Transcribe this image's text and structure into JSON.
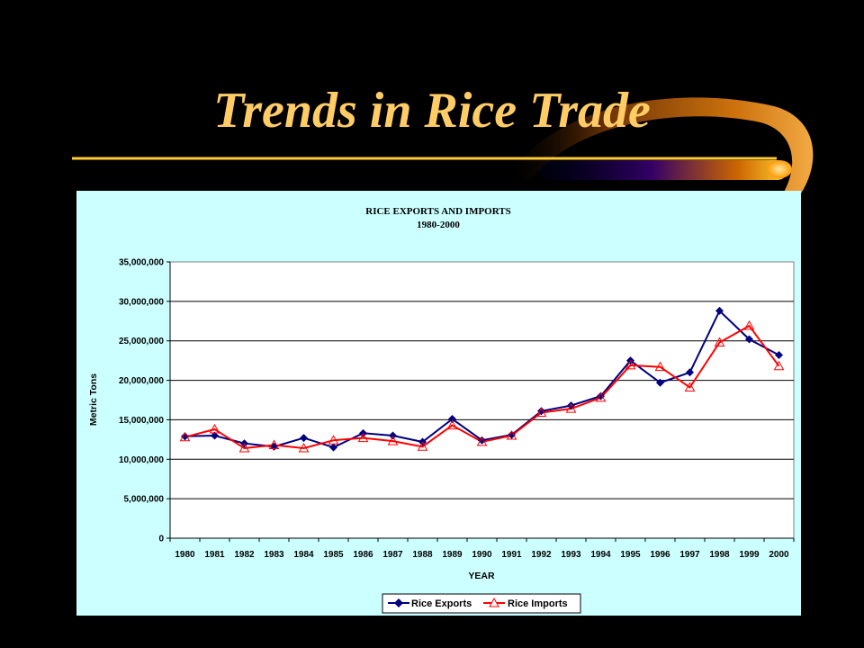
{
  "slide": {
    "title": "Trends in Rice Trade"
  },
  "colors": {
    "background": "#000000",
    "title": "#ffcc66",
    "panel": "#ccffff",
    "exports": "#000080",
    "imports": "#ff0000"
  },
  "chart_data": {
    "type": "line",
    "title": "RICE EXPORTS AND IMPORTS",
    "subtitle": "1980-2000",
    "xlabel": "YEAR",
    "ylabel": "Metric Tons",
    "ylim": [
      0,
      35000000
    ],
    "yticks": [
      "0",
      "5,000,000",
      "10,000,000",
      "15,000,000",
      "20,000,000",
      "25,000,000",
      "30,000,000",
      "35,000,000"
    ],
    "grid": true,
    "legend_position": "bottom",
    "categories": [
      "1980",
      "1981",
      "1982",
      "1983",
      "1984",
      "1985",
      "1986",
      "1987",
      "1988",
      "1989",
      "1990",
      "1991",
      "1992",
      "1993",
      "1994",
      "1995",
      "1996",
      "1997",
      "1998",
      "1999",
      "2000"
    ],
    "series": [
      {
        "name": "Rice Exports",
        "marker": "diamond",
        "color": "#000080",
        "values": [
          12900000,
          13000000,
          12000000,
          11600000,
          12700000,
          11500000,
          13300000,
          13000000,
          12200000,
          15100000,
          12400000,
          13100000,
          16100000,
          16800000,
          18000000,
          22500000,
          19700000,
          21000000,
          28800000,
          25200000,
          23200000
        ]
      },
      {
        "name": "Rice Imports",
        "marker": "triangle",
        "color": "#ff0000",
        "values": [
          12800000,
          13800000,
          11400000,
          11800000,
          11400000,
          12400000,
          12700000,
          12300000,
          11600000,
          14300000,
          12200000,
          13000000,
          15900000,
          16400000,
          17800000,
          21900000,
          21700000,
          19100000,
          24800000,
          26900000,
          21800000
        ]
      }
    ]
  }
}
